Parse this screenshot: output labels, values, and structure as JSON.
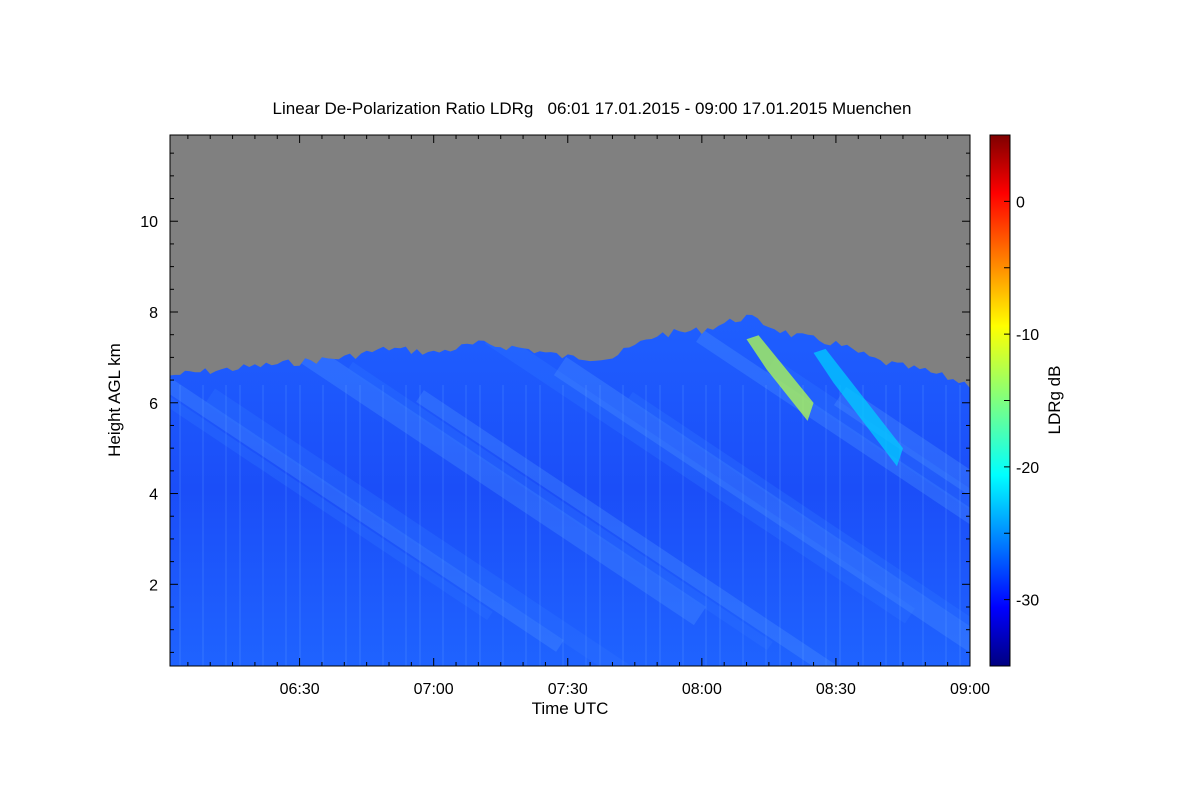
{
  "chart_data": {
    "type": "heatmap",
    "title": "Linear De-Polarization Ratio LDRg   06:01 17.01.2015 - 09:00 17.01.2015 Muenchen",
    "xlabel": "Time UTC",
    "ylabel": "Height AGL km",
    "colorbar_label": "LDRg dB",
    "x_ticks": [
      "06:30",
      "07:00",
      "07:30",
      "08:00",
      "08:30",
      "09:00"
    ],
    "y_ticks": [
      "2",
      "4",
      "6",
      "8",
      "10"
    ],
    "colorbar_ticks": [
      "0",
      "-10",
      "-20",
      "-30"
    ],
    "xlim": [
      "06:01",
      "09:00"
    ],
    "ylim": [
      0.2,
      11.9
    ],
    "colorbar_range": [
      -35,
      5
    ],
    "no_signal_color": "#808080",
    "colormap": "jet",
    "signal_top_km": [
      {
        "time": "06:01",
        "height": 6.6
      },
      {
        "time": "06:10",
        "height": 6.7
      },
      {
        "time": "06:20",
        "height": 6.8
      },
      {
        "time": "06:30",
        "height": 6.9
      },
      {
        "time": "06:40",
        "height": 7.0
      },
      {
        "time": "06:50",
        "height": 7.2
      },
      {
        "time": "07:00",
        "height": 7.1
      },
      {
        "time": "07:10",
        "height": 7.3
      },
      {
        "time": "07:20",
        "height": 7.2
      },
      {
        "time": "07:30",
        "height": 7.0
      },
      {
        "time": "07:40",
        "height": 7.0
      },
      {
        "time": "07:50",
        "height": 7.5
      },
      {
        "time": "08:00",
        "height": 7.6
      },
      {
        "time": "08:10",
        "height": 7.9
      },
      {
        "time": "08:20",
        "height": 7.5
      },
      {
        "time": "08:30",
        "height": 7.3
      },
      {
        "time": "08:40",
        "height": 6.9
      },
      {
        "time": "08:50",
        "height": 6.7
      },
      {
        "time": "09:00",
        "height": 6.4
      }
    ],
    "typical_ldr_db": -29,
    "features": [
      {
        "time_start": "08:10",
        "time_end": "08:25",
        "height_top": 7.4,
        "height_bottom": 5.6,
        "ldr_db": -13
      },
      {
        "time_start": "08:25",
        "time_end": "08:45",
        "height_top": 7.1,
        "height_bottom": 4.6,
        "ldr_db": -22
      }
    ]
  }
}
